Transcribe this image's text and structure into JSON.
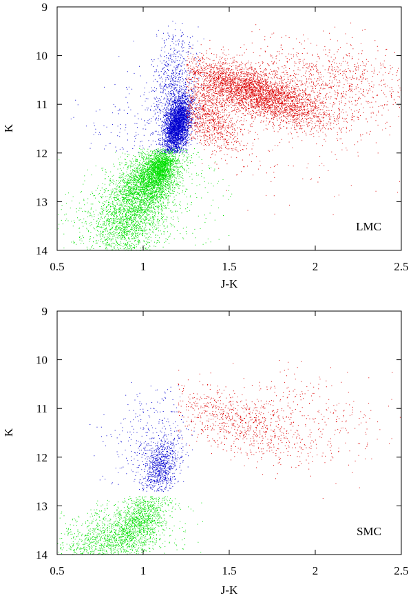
{
  "chart_data": [
    {
      "type": "scatter",
      "title": "",
      "annotation": "LMC",
      "xlabel": "J-K",
      "ylabel": "K",
      "xlim": [
        0.5,
        2.5
      ],
      "ylim": [
        14,
        9
      ],
      "y_inverted": true,
      "xticks": [
        "0.5",
        "1",
        "1.5",
        "2",
        "2.5"
      ],
      "yticks": [
        "9",
        "10",
        "11",
        "12",
        "13",
        "14"
      ],
      "grid": false,
      "series": [
        {
          "color": "#00e000",
          "clusters": [
            {
              "cx": 1.05,
              "cy": 12.5,
              "sx": 0.09,
              "sy": 0.35,
              "rho": -0.45,
              "n": 2600
            },
            {
              "cx": 0.92,
              "cy": 13.3,
              "sx": 0.11,
              "sy": 0.45,
              "rho": -0.3,
              "n": 2000
            },
            {
              "cx": 1.1,
              "cy": 12.3,
              "sx": 0.04,
              "sy": 0.18,
              "rho": -0.3,
              "n": 1000
            },
            {
              "cx": 0.95,
              "cy": 13.2,
              "sx": 0.3,
              "sy": 0.6,
              "rho": -0.4,
              "n": 500
            }
          ],
          "xmin": 0.5,
          "xmax": 1.55,
          "ymin": 11.9,
          "ymax": 14
        },
        {
          "color": "#0000d0",
          "clusters": [
            {
              "cx": 1.2,
              "cy": 11.4,
              "sx": 0.04,
              "sy": 0.3,
              "rho": -0.35,
              "n": 3400
            },
            {
              "cx": 1.17,
              "cy": 10.5,
              "sx": 0.06,
              "sy": 0.55,
              "rho": -0.3,
              "n": 600
            },
            {
              "cx": 1.0,
              "cy": 11.4,
              "sx": 0.18,
              "sy": 0.6,
              "rho": 0,
              "n": 200
            }
          ],
          "xmin": 0.5,
          "xmax": 1.42,
          "ymin": 9.2,
          "ymax": 12.0
        },
        {
          "color": "#dd0000",
          "clusters": [
            {
              "cx": 1.65,
              "cy": 10.75,
              "sx": 0.22,
              "sy": 0.35,
              "rho": 0.72,
              "n": 4000
            },
            {
              "cx": 1.38,
              "cy": 11.3,
              "sx": 0.1,
              "sy": 0.35,
              "rho": 0.5,
              "n": 1000
            },
            {
              "cx": 2.1,
              "cy": 10.5,
              "sx": 0.25,
              "sy": 0.4,
              "rho": 0.3,
              "n": 800
            },
            {
              "cx": 1.9,
              "cy": 11.4,
              "sx": 0.35,
              "sy": 0.9,
              "rho": 0,
              "n": 200
            }
          ],
          "xmin": 1.25,
          "xmax": 2.5,
          "ymin": 9.3,
          "ymax": 13.5
        }
      ]
    },
    {
      "type": "scatter",
      "title": "",
      "annotation": "SMC",
      "xlabel": "J-K",
      "ylabel": "K",
      "xlim": [
        0.5,
        2.5
      ],
      "ylim": [
        14,
        9
      ],
      "y_inverted": true,
      "xticks": [
        "0.5",
        "1",
        "1.5",
        "2",
        "2.5"
      ],
      "yticks": [
        "9",
        "10",
        "11",
        "12",
        "13",
        "14"
      ],
      "grid": false,
      "series": [
        {
          "color": "#00e000",
          "clusters": [
            {
              "cx": 0.98,
              "cy": 13.3,
              "sx": 0.08,
              "sy": 0.35,
              "rho": -0.4,
              "n": 1100
            },
            {
              "cx": 0.8,
              "cy": 13.65,
              "sx": 0.13,
              "sy": 0.3,
              "rho": -0.3,
              "n": 1000
            },
            {
              "cx": 0.8,
              "cy": 13.6,
              "sx": 0.25,
              "sy": 0.4,
              "rho": -0.3,
              "n": 250
            }
          ],
          "xmin": 0.5,
          "xmax": 1.35,
          "ymin": 12.8,
          "ymax": 14
        },
        {
          "color": "#0000d0",
          "clusters": [
            {
              "cx": 1.1,
              "cy": 12.2,
              "sx": 0.05,
              "sy": 0.3,
              "rho": -0.3,
              "n": 800
            },
            {
              "cx": 1.05,
              "cy": 11.6,
              "sx": 0.12,
              "sy": 0.55,
              "rho": -0.2,
              "n": 350
            }
          ],
          "xmin": 0.6,
          "xmax": 1.3,
          "ymin": 10.4,
          "ymax": 12.7
        },
        {
          "color": "#dd0000",
          "clusters": [
            {
              "cx": 1.55,
              "cy": 11.3,
              "sx": 0.25,
              "sy": 0.4,
              "rho": 0.65,
              "n": 900
            },
            {
              "cx": 2.0,
              "cy": 11.0,
              "sx": 0.25,
              "sy": 0.5,
              "rho": 0.3,
              "n": 250
            }
          ],
          "xmin": 1.2,
          "xmax": 2.5,
          "ymin": 10.0,
          "ymax": 13.5
        }
      ]
    }
  ]
}
